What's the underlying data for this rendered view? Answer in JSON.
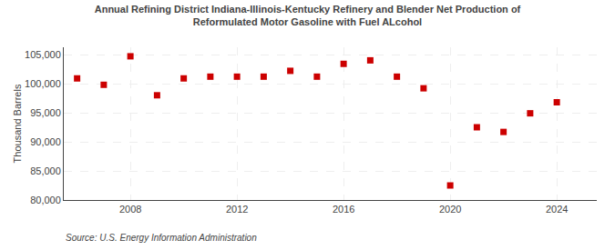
{
  "chart_data": {
    "type": "scatter",
    "title": "Annual Refining District Indiana-Illinois-Kentucky Refinery and Blender Net Production of",
    "subtitle": "Reformulated Motor Gasoline with Fuel ALcohol",
    "ylabel": "Thousand Barrels",
    "annotations": [
      "Source: U.S. Energy Information Administration"
    ],
    "x": [
      2006,
      2007,
      2008,
      2009,
      2010,
      2011,
      2012,
      2013,
      2014,
      2015,
      2016,
      2017,
      2018,
      2019,
      2020,
      2021,
      2022,
      2023,
      2024
    ],
    "values": [
      100900,
      99800,
      104700,
      98000,
      100900,
      101200,
      101200,
      101200,
      102200,
      101200,
      103400,
      104000,
      101200,
      99200,
      82500,
      92500,
      91700,
      94900,
      96800
    ],
    "color": "#cc0000",
    "marker": "square",
    "xlim": [
      2005.5,
      2025.5
    ],
    "xticks": [
      2008,
      2012,
      2016,
      2020,
      2024
    ],
    "ylim": [
      80000,
      106250
    ],
    "yticks": [
      {
        "value": 80000,
        "label": "80,000"
      },
      {
        "value": 85000,
        "label": "85,000"
      },
      {
        "value": 90000,
        "label": "90,000"
      },
      {
        "value": 95000,
        "label": "95,000"
      },
      {
        "value": 100000,
        "label": "100,000"
      },
      {
        "value": 105000,
        "label": "105,000"
      }
    ],
    "grid": true
  }
}
